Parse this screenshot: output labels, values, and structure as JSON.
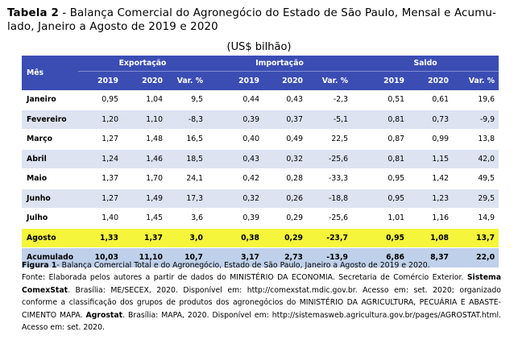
{
  "title": {
    "label": "Tabela 2",
    "text": " - Balança Comercial do Agronegócio do Estado de São Paulo, Mensal e Acumu-lado, Janeiro a Agosto de 2019 e 2020"
  },
  "unit": "(US$ bilhão)",
  "table": {
    "month_header": "Mês",
    "groups": [
      "Exportação",
      "Importação",
      "Saldo"
    ],
    "subheaders": [
      "2019",
      "2020",
      "Var. %",
      "2019",
      "2020",
      "Var. %",
      "2019",
      "2020",
      "Var. %"
    ],
    "rows": [
      {
        "mes": "Janeiro",
        "vals": [
          "0,95",
          "1,04",
          "9,5",
          "0,44",
          "0,43",
          "-2,3",
          "0,51",
          "0,61",
          "19,6"
        ]
      },
      {
        "mes": "Fevereiro",
        "vals": [
          "1,20",
          "1,10",
          "-8,3",
          "0,39",
          "0,37",
          "-5,1",
          "0,81",
          "0,73",
          "-9,9"
        ]
      },
      {
        "mes": "Março",
        "vals": [
          "1,27",
          "1,48",
          "16,5",
          "0,40",
          "0,49",
          "22,5",
          "0,87",
          "0,99",
          "13,8"
        ]
      },
      {
        "mes": "Abril",
        "vals": [
          "1,24",
          "1,46",
          "18,5",
          "0,43",
          "0,32",
          "-25,6",
          "0,81",
          "1,15",
          "42,0"
        ]
      },
      {
        "mes": "Maio",
        "vals": [
          "1,37",
          "1,70",
          "24,1",
          "0,42",
          "0,28",
          "-33,3",
          "0,95",
          "1,42",
          "49,5"
        ]
      },
      {
        "mes": "Junho",
        "vals": [
          "1,27",
          "1,49",
          "17,3",
          "0,32",
          "0,26",
          "-18,8",
          "0,95",
          "1,23",
          "29,5"
        ]
      },
      {
        "mes": "Julho",
        "vals": [
          "1,40",
          "1,45",
          "3,6",
          "0,39",
          "0,29",
          "-25,6",
          "1,01",
          "1,16",
          "14,9"
        ]
      },
      {
        "mes": "Agosto",
        "vals": [
          "1,33",
          "1,37",
          "3,0",
          "0,38",
          "0,29",
          "-23,7",
          "0,95",
          "1,08",
          "13,7"
        ]
      },
      {
        "mes": "Acumulado",
        "vals": [
          "10,03",
          "11,10",
          "10,7",
          "3,17",
          "2,73",
          "-13,9",
          "6,86",
          "8,37",
          "22,0"
        ]
      }
    ]
  },
  "caption": {
    "fig_label": "Figura 1",
    "fig_text": "- Balança Comercial Total e do Agronegócio, Estado de São Paulo, Janeiro a Agosto de 2019 e 2020.",
    "fonte_1": "Fonte: Elaborada pelos autores a partir de dados do MINISTÉRIO DA ECONOMIA. Secretaria de Comércio Exterior. ",
    "sistema": "Sistema ComexStat",
    "fonte_2": ". Brasília: ME/SECEX, 2020. Disponível em: http://comexstat.mdic.gov.br. Acesso em: set. 2020; organizado conforme a classificação dos grupos de produtos dos agronegócios do MINISTÉRIO DA AGRICULTURA, PECUÁRIA E ABASTE-CIMENTO MAPA. ",
    "agrostat": "Agrostat",
    "fonte_3": ". Brasília: MAPA, 2020. Disponível em: http://sistemasweb.agricultura.gov.br/pages/AGROSTAT.html. Acesso em: set. 2020."
  }
}
